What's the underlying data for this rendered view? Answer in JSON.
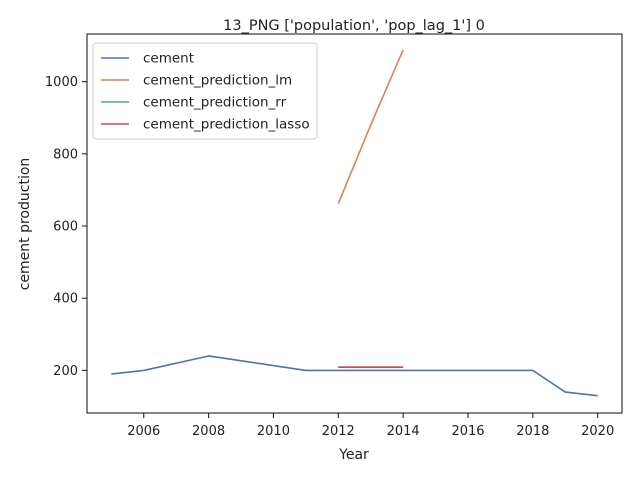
{
  "chart_data": {
    "type": "line",
    "title": "13_PNG ['population', 'pop_lag_1'] 0",
    "xlabel": "Year",
    "ylabel": "cement production",
    "xlim": [
      2004.25,
      2020.75
    ],
    "ylim": [
      82,
      1132
    ],
    "xticks": [
      2006,
      2008,
      2010,
      2012,
      2014,
      2016,
      2018,
      2020
    ],
    "yticks": [
      200,
      400,
      600,
      800,
      1000
    ],
    "grid": false,
    "legend_position": "top-left",
    "series": [
      {
        "name": "cement",
        "color": "#4c72b0",
        "x": [
          2005,
          2006,
          2008,
          2011,
          2012,
          2013,
          2014,
          2015,
          2016,
          2017,
          2018,
          2019,
          2020
        ],
        "y": [
          190,
          200,
          240,
          200,
          200,
          200,
          200,
          200,
          200,
          200,
          200,
          140,
          130
        ]
      },
      {
        "name": "cement_prediction_lm",
        "color": "#dd8452",
        "x": [
          2012,
          2013,
          2014
        ],
        "y": [
          662,
          880,
          1088
        ]
      },
      {
        "name": "cement_prediction_rr",
        "color": "#55a868",
        "x": [
          2012,
          2013,
          2014
        ],
        "y": [
          209,
          209,
          209
        ]
      },
      {
        "name": "cement_prediction_lasso",
        "color": "#c44e52",
        "x": [
          2012,
          2013,
          2014
        ],
        "y": [
          209,
          209,
          209
        ]
      }
    ]
  }
}
